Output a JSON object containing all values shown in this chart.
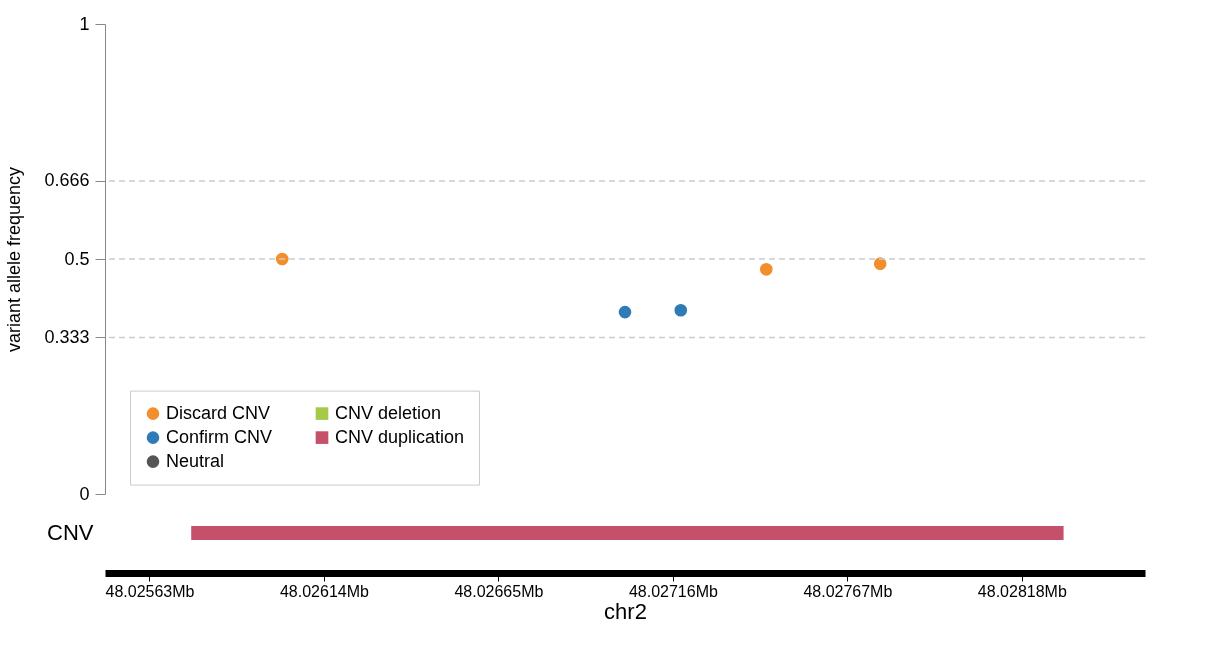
{
  "chart_data": [
    {
      "type": "scatter",
      "ylabel": "variant allele frequency",
      "ylim": [
        0,
        1
      ],
      "yticks": [
        0,
        0.333,
        0.5,
        0.666,
        1
      ],
      "xlim": [
        48.0255,
        48.02854
      ],
      "tick_labels": "y",
      "legend": "bottom left",
      "marker": "circle",
      "series": [
        {
          "name": "Discard CNV",
          "color": "#f28e2b",
          "x": [
            48.026018,
            48.027433,
            48.027766
          ],
          "values": [
            0.5,
            0.478,
            0.49
          ]
        },
        {
          "name": "Confirm CNV",
          "color": "#2f7bb6",
          "x": [
            48.02702,
            48.027183
          ],
          "values": [
            0.387,
            0.391
          ]
        },
        {
          "name": "Neutral",
          "color": "#555555"
        }
      ],
      "ref_lines": [
        {
          "axis": "y",
          "value": 0.333,
          "color": "#cccccc",
          "line_style": "dashed"
        },
        {
          "axis": "y",
          "value": 0.5,
          "color": "#cccccc",
          "line_style": "dashed"
        },
        {
          "axis": "y",
          "value": 0.666,
          "color": "#cccccc",
          "line_style": "dashed"
        }
      ]
    },
    {
      "type": "bar",
      "orientation": "horizontal",
      "categories": [
        "CNV"
      ],
      "xlabel": "chr2",
      "xlim": [
        48.0255,
        48.02854
      ],
      "xticks": [
        {
          "value": 48.02563,
          "label": "48.02563Mb"
        },
        {
          "value": 48.02614,
          "label": "48.02614Mb"
        },
        {
          "value": 48.02665,
          "label": "48.02665Mb"
        },
        {
          "value": 48.02716,
          "label": "48.02716Mb"
        },
        {
          "value": 48.02767,
          "label": "48.02767Mb"
        },
        {
          "value": 48.02818,
          "label": "48.02818Mb"
        }
      ],
      "series": [
        {
          "name": "CNV deletion",
          "color": "#a6c94a",
          "base": [
            null
          ],
          "values": [
            null
          ]
        },
        {
          "name": "CNV duplication",
          "color": "#c5506a",
          "base": [
            48.025752
          ],
          "values": [
            0.00255
          ]
        }
      ]
    }
  ]
}
